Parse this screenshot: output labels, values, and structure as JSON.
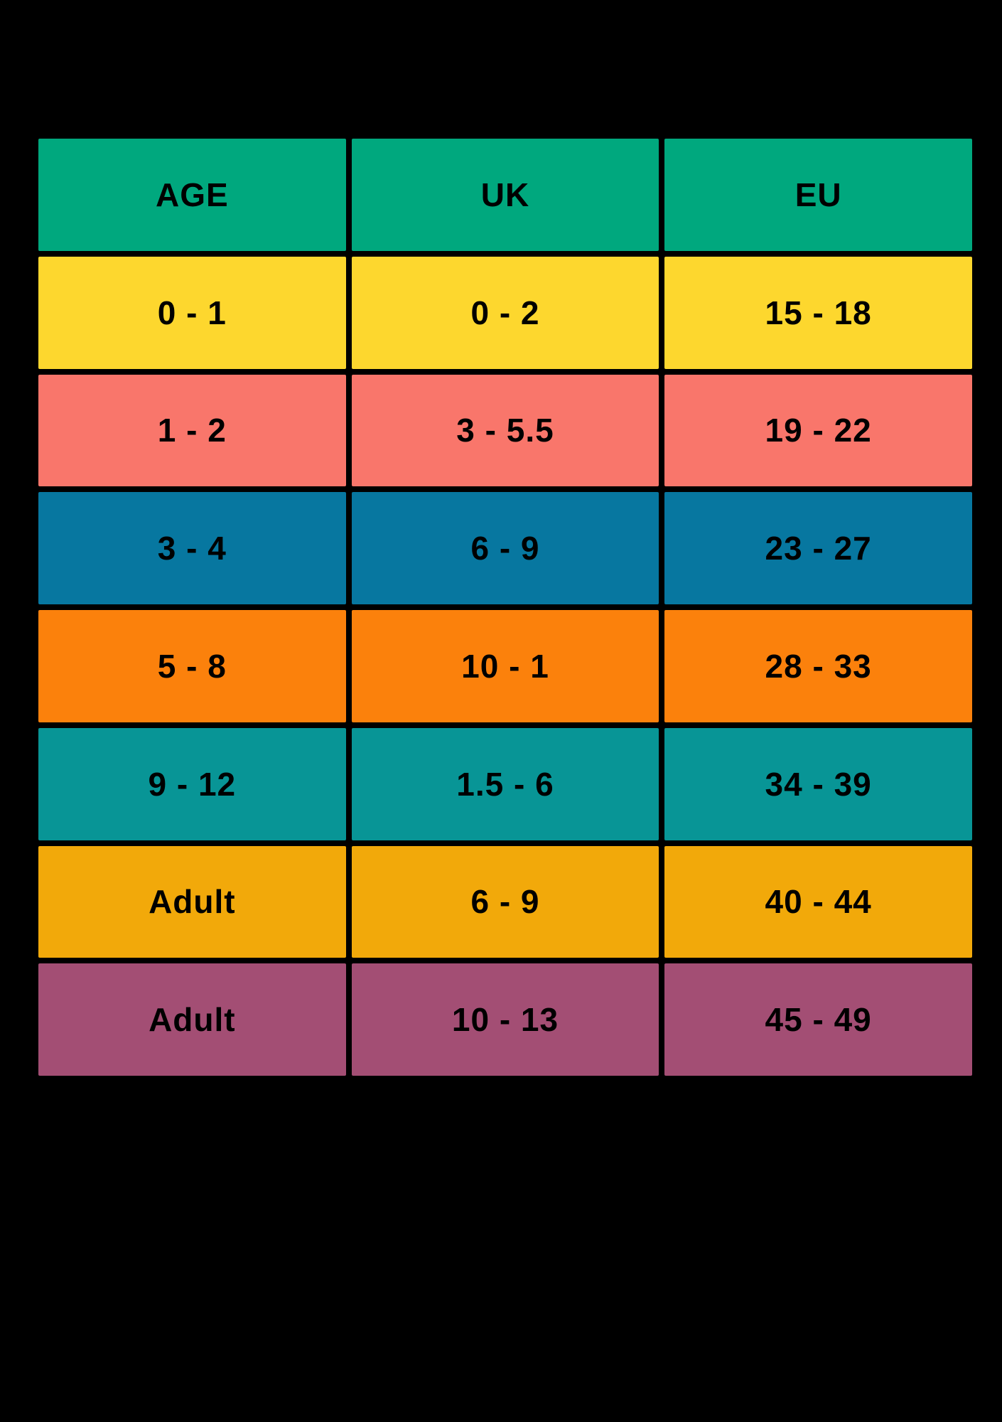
{
  "chart_data": {
    "type": "table",
    "title": "",
    "columns": [
      "AGE",
      "UK",
      "EU"
    ],
    "rows": [
      [
        "0 - 1",
        "0 - 2",
        "15 - 18"
      ],
      [
        "1 - 2",
        "3 - 5.5",
        "19 - 22"
      ],
      [
        "3 - 4",
        "6 - 9",
        "23 - 27"
      ],
      [
        "5 - 8",
        "10 - 1",
        "28 - 33"
      ],
      [
        "9 - 12",
        "1.5 - 6",
        "34 - 39"
      ],
      [
        "Adult",
        "6 - 9",
        "40 - 44"
      ],
      [
        "Adult",
        "10 - 13",
        "45 - 49"
      ]
    ],
    "header_color": "#00A87E",
    "row_colors": [
      "#FDD72E",
      "#F9766B",
      "#0777A0",
      "#FB810C",
      "#089596",
      "#F2A90A",
      "#A34E74"
    ],
    "background": "#000000",
    "text_color": "#000000",
    "grid": "off",
    "legend": "none"
  }
}
